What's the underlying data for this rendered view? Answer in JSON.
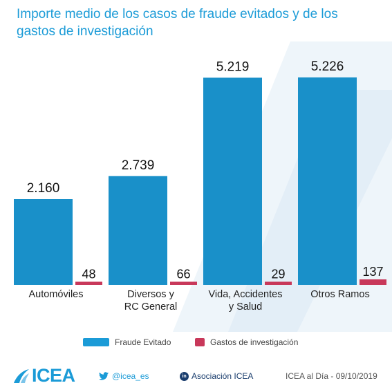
{
  "title": "Importe medio de los casos de fraude evitados y de los gastos de investigación",
  "chart_data": {
    "type": "bar",
    "title": "Importe medio de los casos de fraude evitados y de los gastos de investigación",
    "categories": [
      "Automóviles",
      "Diversos y\nRC General",
      "Vida, Accidentes\ny Salud",
      "Otros Ramos"
    ],
    "series": [
      {
        "name": "Fraude Evitado",
        "values": [
          2160,
          2739,
          5219,
          5226
        ],
        "labels": [
          "2.160",
          "2.739",
          "5.219",
          "5.226"
        ],
        "color": "#1b9bd7"
      },
      {
        "name": "Gastos de investigación",
        "values": [
          48,
          66,
          29,
          137
        ],
        "labels": [
          "48",
          "66",
          "29",
          "137"
        ],
        "color": "#c8385a"
      }
    ],
    "ylim": [
      0,
      5226
    ],
    "grid": false,
    "legend": "bottom"
  },
  "legend": {
    "fraude_label": "Fraude Evitado",
    "gastos_label": "Gastos de investigación",
    "fraude_color": "#1b9bd7",
    "gastos_color": "#c8385a"
  },
  "footer": {
    "brand": "ICEA",
    "twitter": "@icea_es",
    "linkedin": "Asociación ICEA",
    "date_info": "ICEA al Día - 09/10/2019",
    "twitter_icon": "bird-icon",
    "linkedin_icon": "linkedin-icon"
  }
}
